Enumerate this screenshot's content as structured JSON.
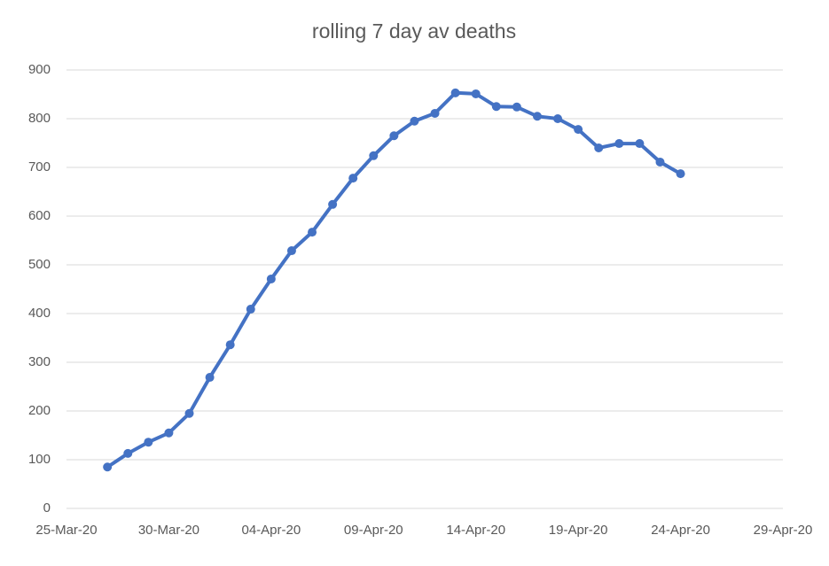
{
  "chart_data": {
    "type": "line",
    "title": "rolling 7 day av deaths",
    "x": [
      "27-Mar-20",
      "28-Mar-20",
      "29-Mar-20",
      "30-Mar-20",
      "31-Mar-20",
      "01-Apr-20",
      "02-Apr-20",
      "03-Apr-20",
      "04-Apr-20",
      "05-Apr-20",
      "06-Apr-20",
      "07-Apr-20",
      "08-Apr-20",
      "09-Apr-20",
      "10-Apr-20",
      "11-Apr-20",
      "12-Apr-20",
      "13-Apr-20",
      "14-Apr-20",
      "15-Apr-20",
      "16-Apr-20",
      "17-Apr-20",
      "18-Apr-20",
      "19-Apr-20",
      "20-Apr-20",
      "21-Apr-20",
      "22-Apr-20",
      "23-Apr-20",
      "24-Apr-20"
    ],
    "series": [
      {
        "name": "rolling 7 day av deaths",
        "color": "#4472c4",
        "values": [
          85,
          113,
          136,
          155,
          195,
          269,
          336,
          409,
          471,
          529,
          567,
          624,
          678,
          724,
          765,
          795,
          811,
          853,
          851,
          825,
          824,
          805,
          800,
          778,
          740,
          749,
          749,
          711,
          687
        ]
      }
    ],
    "xlim": [
      "25-Mar-20",
      "29-Apr-20"
    ],
    "xticks": [
      "25-Mar-20",
      "30-Mar-20",
      "04-Apr-20",
      "09-Apr-20",
      "14-Apr-20",
      "19-Apr-20",
      "24-Apr-20",
      "29-Apr-20"
    ],
    "ylim": [
      0,
      900
    ],
    "yticks": [
      0,
      100,
      200,
      300,
      400,
      500,
      600,
      700,
      800,
      900
    ],
    "grid": true
  }
}
